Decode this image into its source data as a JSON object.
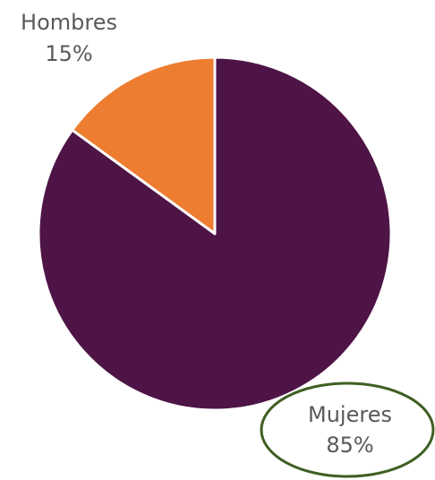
{
  "chart_data": {
    "type": "pie",
    "title": "",
    "legend": "none",
    "slices": [
      {
        "label": "Hombres",
        "value": 15,
        "value_label": "15%",
        "color": "#ED7D31"
      },
      {
        "label": "Mujeres",
        "value": 85,
        "value_label": "85%",
        "color": "#4E1446"
      }
    ],
    "annotation": {
      "type": "ellipse-highlight",
      "target": "Mujeres",
      "color": "#3F5F23"
    }
  }
}
